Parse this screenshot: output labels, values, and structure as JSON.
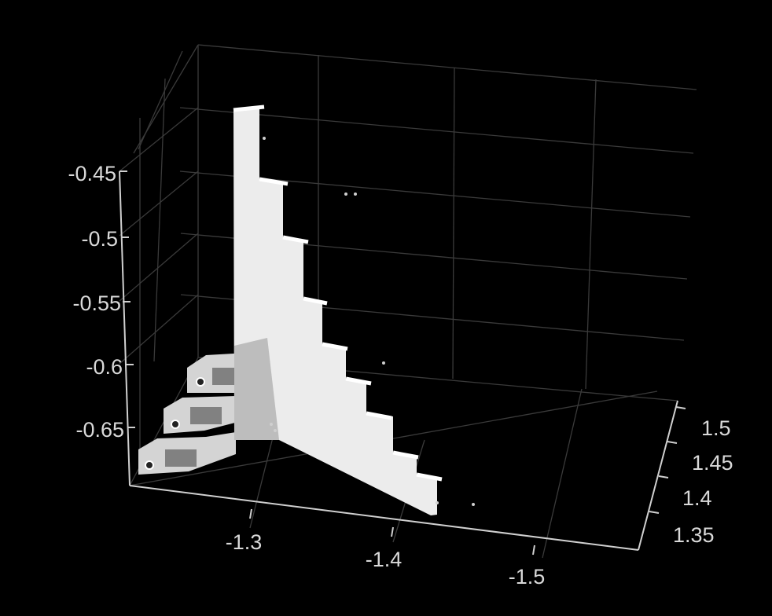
{
  "chart_data": {
    "type": "scatter3d",
    "title": "",
    "xlabel": "",
    "ylabel": "",
    "zlabel": "",
    "background": "#000000",
    "point_color": "#ffffff",
    "grid": true,
    "x_axis": {
      "ticks": [
        -1.3,
        -1.4,
        -1.5
      ],
      "tick_labels": [
        "-1.3",
        "-1.4",
        "-1.5"
      ]
    },
    "y_axis": {
      "ticks": [
        1.35,
        1.4,
        1.45,
        1.5
      ],
      "tick_labels": [
        "1.35",
        "1.4",
        "1.45",
        "1.5"
      ]
    },
    "z_axis": {
      "ticks": [
        -0.45,
        -0.5,
        -0.55,
        -0.6,
        -0.65
      ],
      "tick_labels": [
        "-0.45",
        "-0.5",
        "-0.55",
        "-0.6",
        "-0.65"
      ]
    },
    "series": [
      {
        "description_shape": "staircase",
        "tall_wall_step_tops_z": [
          -0.41,
          -0.46,
          -0.51,
          -0.55,
          -0.59,
          -0.63,
          -0.67,
          -0.7
        ],
        "side_steps_z": [
          -0.61,
          -0.64,
          -0.67
        ]
      }
    ]
  }
}
